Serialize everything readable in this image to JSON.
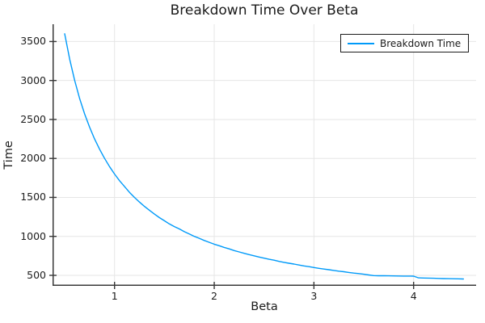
{
  "figure": {
    "background": "#ffffff",
    "title": "Breakdown Time Over Beta"
  },
  "style": {
    "line_color": "#009af9",
    "grid_color": "#e6e6e6",
    "spine_color": "#383838",
    "tick_color": "#1c1c1c",
    "legend_border_color": "#1c1c1c"
  },
  "chart_data": {
    "type": "line",
    "title": "Breakdown Time Over Beta",
    "xlabel": "Beta",
    "ylabel": "Time",
    "xlim": [
      0.378,
      4.627
    ],
    "ylim": [
      365,
      3722
    ],
    "xticks": [
      1,
      2,
      3,
      4
    ],
    "yticks": [
      500,
      1000,
      1500,
      2000,
      2500,
      3000,
      3500
    ],
    "grid": true,
    "legend_position": "top-right",
    "series": [
      {
        "name": "Breakdown Time",
        "color": "#009af9",
        "x": [
          0.5,
          0.55,
          0.6,
          0.65,
          0.7,
          0.75,
          0.8,
          0.85,
          0.9,
          0.95,
          1.0,
          1.05,
          1.1,
          1.15,
          1.2,
          1.25,
          1.3,
          1.35,
          1.4,
          1.45,
          1.5,
          1.55,
          1.6,
          1.65,
          1.7,
          1.75,
          1.8,
          1.85,
          1.9,
          1.95,
          2.0,
          2.05,
          2.1,
          2.15,
          2.2,
          2.25,
          2.3,
          2.35,
          2.4,
          2.45,
          2.5,
          2.55,
          2.6,
          2.65,
          2.7,
          2.75,
          2.8,
          2.85,
          2.9,
          2.95,
          3.0,
          3.05,
          3.1,
          3.15,
          3.2,
          3.25,
          3.3,
          3.35,
          3.4,
          3.45,
          3.5,
          3.55,
          3.6,
          3.65,
          3.7,
          3.75,
          3.8,
          3.85,
          3.9,
          3.95,
          4.0,
          4.05,
          4.1,
          4.15,
          4.2,
          4.25,
          4.3,
          4.35,
          4.4,
          4.45,
          4.5
        ],
        "y": [
          3600,
          3273,
          3000,
          2769,
          2571,
          2400,
          2250,
          2118,
          2000,
          1895,
          1800,
          1714,
          1640,
          1565,
          1500,
          1440,
          1385,
          1335,
          1286,
          1241,
          1200,
          1160,
          1125,
          1095,
          1060,
          1030,
          1000,
          975,
          947,
          923,
          900,
          880,
          858,
          840,
          818,
          800,
          783,
          766,
          750,
          735,
          720,
          706,
          694,
          679,
          667,
          655,
          645,
          632,
          621,
          612,
          600,
          590,
          581,
          572,
          563,
          554,
          546,
          537,
          529,
          522,
          514,
          505,
          497,
          495,
          494,
          493,
          492,
          491,
          490,
          490,
          489,
          468,
          466,
          464,
          462,
          460,
          458,
          457,
          456,
          455,
          453
        ]
      }
    ]
  },
  "legend": {
    "entries": [
      {
        "label": "Breakdown Time",
        "color": "#009af9"
      }
    ]
  }
}
